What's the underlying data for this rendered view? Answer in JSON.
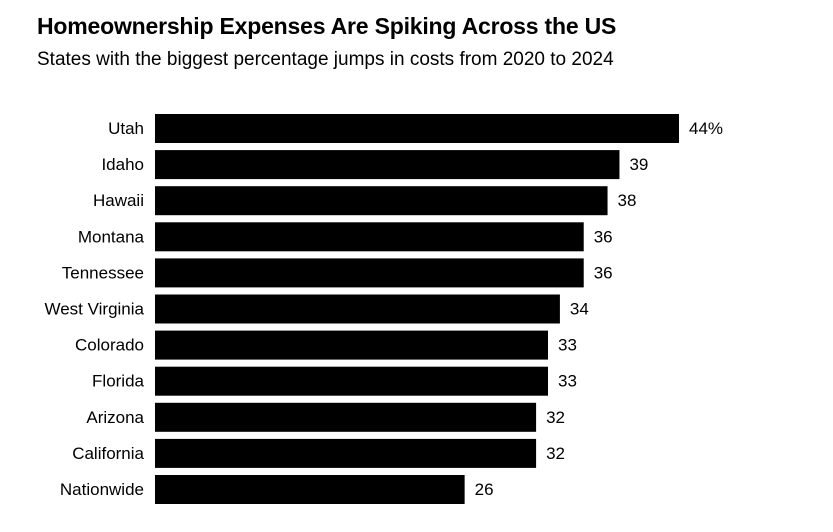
{
  "header": {
    "title": "Homeownership Expenses Are Spiking Across the US",
    "subtitle": "States with the biggest percentage jumps in costs from 2020 to 2024"
  },
  "chart_data": {
    "type": "bar",
    "orientation": "horizontal",
    "title": "Homeownership Expenses Are Spiking Across the US",
    "subtitle": "States with the biggest percentage jumps in costs from 2020 to 2024",
    "categories": [
      "Utah",
      "Idaho",
      "Hawaii",
      "Montana",
      "Tennessee",
      "West Virginia",
      "Colorado",
      "Florida",
      "Arizona",
      "California",
      "Nationwide"
    ],
    "values": [
      44,
      39,
      38,
      36,
      36,
      34,
      33,
      33,
      32,
      32,
      26
    ],
    "value_labels": [
      "44%",
      "39",
      "38",
      "36",
      "36",
      "34",
      "33",
      "33",
      "32",
      "32",
      "26"
    ],
    "unit": "%",
    "xlim": [
      0,
      44
    ],
    "grid": false,
    "legend": "none",
    "bar_color": "#000000"
  }
}
